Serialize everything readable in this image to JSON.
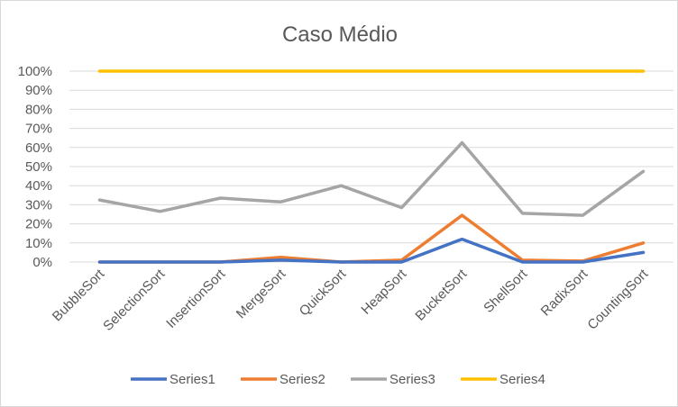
{
  "chart_data": {
    "type": "line",
    "title": "Caso Médio",
    "xlabel": "",
    "ylabel": "",
    "categories": [
      "BubbleSort",
      "SelectionSort",
      "InsertionSort",
      "MergeSort",
      "QuickSort",
      "HeapSort",
      "BucketSort",
      "ShellSort",
      "RadixSort",
      "CountingSort"
    ],
    "yticks": [
      "0%",
      "10%",
      "20%",
      "30%",
      "40%",
      "50%",
      "60%",
      "70%",
      "80%",
      "90%",
      "100%"
    ],
    "ylim": [
      0,
      1
    ],
    "grid": true,
    "legend_position": "bottom",
    "series": [
      {
        "name": "Series1",
        "color": "#4472c4",
        "values": [
          0.0,
          0.0,
          0.0,
          0.01,
          0.0,
          0.0,
          0.12,
          0.0,
          0.0,
          0.05
        ]
      },
      {
        "name": "Series2",
        "color": "#ed7d31",
        "values": [
          0.0,
          0.0,
          0.0,
          0.025,
          0.0,
          0.01,
          0.245,
          0.01,
          0.005,
          0.1
        ]
      },
      {
        "name": "Series3",
        "color": "#a5a5a5",
        "values": [
          0.325,
          0.265,
          0.335,
          0.315,
          0.4,
          0.285,
          0.625,
          0.255,
          0.245,
          0.475
        ]
      },
      {
        "name": "Series4",
        "color": "#ffc000",
        "values": [
          1.0,
          1.0,
          1.0,
          1.0,
          1.0,
          1.0,
          1.0,
          1.0,
          1.0,
          1.0
        ]
      }
    ]
  }
}
